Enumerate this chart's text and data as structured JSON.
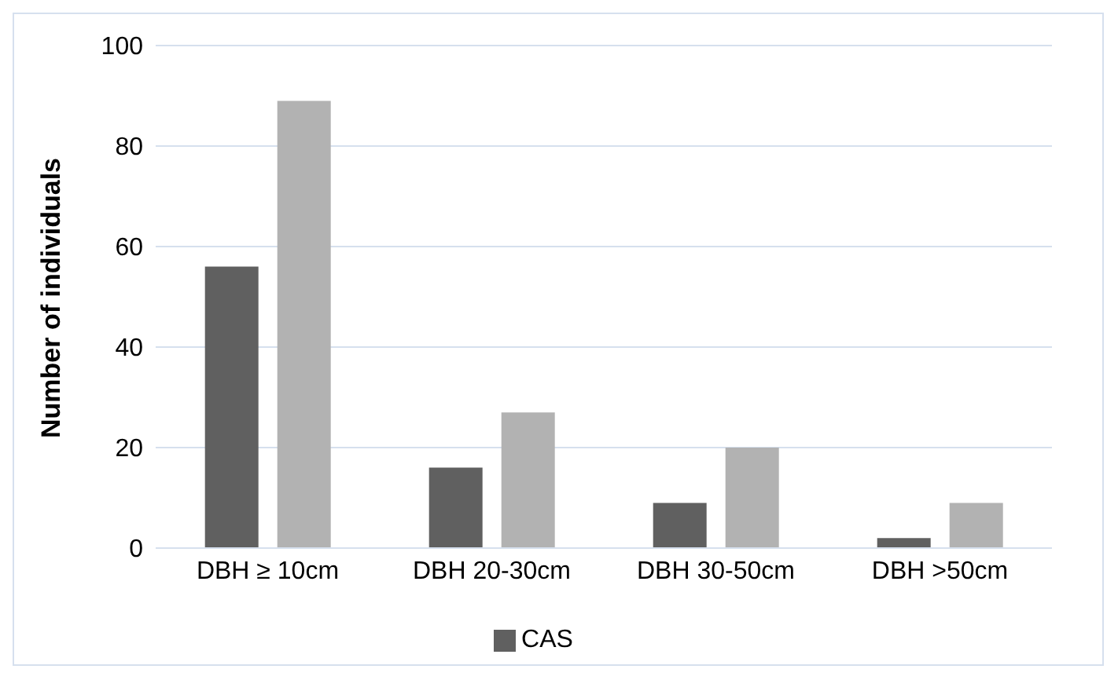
{
  "chart_data": {
    "type": "bar",
    "ylabel": "Number of individuals",
    "categories": [
      "DBH ≥ 10cm",
      "DBH 20-30cm",
      "DBH 30-50cm",
      "DBH >50cm"
    ],
    "series": [
      {
        "name": "CAS",
        "color": "#606060",
        "values": [
          56,
          16,
          9,
          2
        ]
      },
      {
        "color": "#b2b2b2",
        "values": [
          89,
          27,
          20,
          9
        ]
      }
    ],
    "ylim": [
      0,
      100
    ],
    "yticks": [
      0,
      20,
      40,
      60,
      80,
      100
    ],
    "grid": "y",
    "legend": "bottom"
  }
}
